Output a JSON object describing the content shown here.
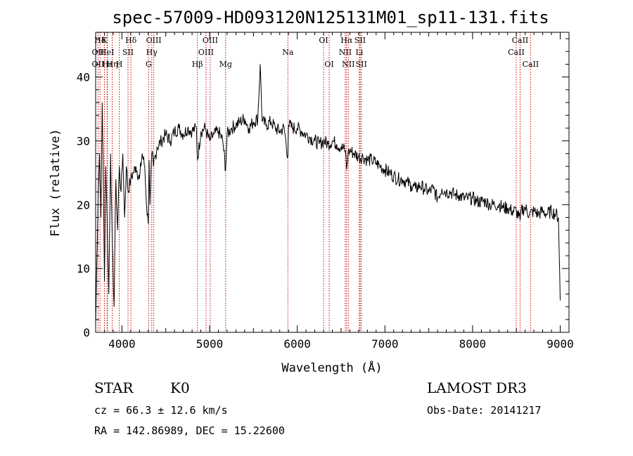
{
  "chart_data": {
    "type": "line",
    "title": "spec-57009-HD093120N125131M01_sp11-131.fits",
    "xlabel": "Wavelength (Å)",
    "ylabel": "Flux (relative)",
    "xlim": [
      3700,
      9100
    ],
    "ylim": [
      0,
      47
    ],
    "xticks": [
      4000,
      5000,
      6000,
      7000,
      8000,
      9000
    ],
    "yticks": [
      0,
      10,
      20,
      30,
      40
    ],
    "series": [
      {
        "name": "spectrum",
        "x": [
          3700,
          3715,
          3730,
          3745,
          3760,
          3775,
          3790,
          3800,
          3815,
          3830,
          3850,
          3870,
          3890,
          3910,
          3930,
          3950,
          3970,
          3990,
          4010,
          4030,
          4050,
          4070,
          4100,
          4130,
          4160,
          4200,
          4230,
          4260,
          4280,
          4300,
          4310,
          4320,
          4340,
          4360,
          4400,
          4450,
          4500,
          4550,
          4600,
          4650,
          4700,
          4750,
          4800,
          4850,
          4861,
          4900,
          4950,
          5000,
          5050,
          5100,
          5150,
          5183,
          5200,
          5250,
          5300,
          5350,
          5400,
          5450,
          5500,
          5550,
          5577,
          5600,
          5650,
          5700,
          5750,
          5800,
          5850,
          5893,
          5900,
          5950,
          6000,
          6050,
          6100,
          6150,
          6200,
          6250,
          6300,
          6350,
          6400,
          6450,
          6500,
          6550,
          6563,
          6580,
          6600,
          6650,
          6700,
          6750,
          6800,
          6850,
          6900,
          6950,
          7000,
          7050,
          7100,
          7150,
          7200,
          7250,
          7300,
          7350,
          7400,
          7450,
          7500,
          7550,
          7600,
          7650,
          7700,
          7750,
          7800,
          7850,
          7900,
          7950,
          8000,
          8050,
          8100,
          8150,
          8200,
          8250,
          8300,
          8350,
          8400,
          8450,
          8500,
          8542,
          8550,
          8600,
          8650,
          8700,
          8750,
          8800,
          8850,
          8900,
          8950,
          8980,
          9000
        ],
        "values": [
          1,
          12,
          22,
          28,
          18,
          36,
          22,
          8,
          26,
          18,
          6,
          28,
          14,
          4,
          24,
          16,
          26,
          22,
          28,
          18,
          26,
          22,
          24,
          25,
          26,
          24,
          28,
          26,
          20,
          17,
          27,
          20,
          28,
          26,
          29,
          30,
          31,
          30,
          31.5,
          32,
          31,
          32,
          31.5,
          32,
          27,
          31.5,
          32,
          30,
          31,
          31.5,
          30,
          25.5,
          31,
          32,
          32.5,
          33,
          33.5,
          32,
          33,
          33.5,
          42,
          33,
          32.5,
          33,
          32,
          31.5,
          32,
          27.5,
          32.5,
          32,
          32,
          31.5,
          31,
          30.5,
          30,
          29.5,
          30,
          29.5,
          30,
          29.5,
          29,
          28.5,
          25.5,
          28,
          28.5,
          28,
          27.5,
          27.5,
          27,
          27,
          26.5,
          26,
          25.5,
          25,
          24.5,
          24,
          24,
          23.5,
          23,
          22.5,
          23,
          22.5,
          22,
          22.5,
          21,
          22.5,
          22,
          22,
          21.5,
          21.5,
          21,
          21,
          21,
          20.5,
          20.5,
          20.5,
          20,
          20,
          20,
          19.5,
          19.5,
          19,
          19,
          17.5,
          19,
          19.5,
          18.5,
          19,
          18.5,
          19,
          18.5,
          19,
          18.5,
          18,
          5
        ]
      }
    ],
    "lines": [
      {
        "label": "Hδ",
        "x": 3750,
        "row": 0
      },
      {
        "label": "K",
        "x": 3800,
        "row": 0
      },
      {
        "label": "Hδ",
        "x": 4102,
        "row": 0
      },
      {
        "label": "OIII",
        "x": 4363,
        "row": 0
      },
      {
        "label": "OIII",
        "x": 5007,
        "row": 0
      },
      {
        "label": "OI",
        "x": 6300,
        "row": 0
      },
      {
        "label": "Hα",
        "x": 6563,
        "row": 0
      },
      {
        "label": "SII",
        "x": 6717,
        "row": 0
      },
      {
        "label": "CaII",
        "x": 8542,
        "row": 0
      },
      {
        "label": "OII",
        "x": 3727,
        "row": 1
      },
      {
        "label": "HeI",
        "x": 3830,
        "row": 1
      },
      {
        "label": "SII",
        "x": 4069,
        "row": 1
      },
      {
        "label": "Hγ",
        "x": 4340,
        "row": 1
      },
      {
        "label": "OIII",
        "x": 4959,
        "row": 1
      },
      {
        "label": "Na",
        "x": 5893,
        "row": 1
      },
      {
        "label": "NII",
        "x": 6548,
        "row": 1
      },
      {
        "label": "Li",
        "x": 6708,
        "row": 1
      },
      {
        "label": "CaII",
        "x": 8498,
        "row": 1
      },
      {
        "label": "OII",
        "x": 3727,
        "row": 2
      },
      {
        "label": "Hε",
        "x": 3835,
        "row": 2
      },
      {
        "label": "Hη",
        "x": 3889,
        "row": 2
      },
      {
        "label": "H",
        "x": 3969,
        "row": 2
      },
      {
        "label": "G",
        "x": 4305,
        "row": 2
      },
      {
        "label": "Hβ",
        "x": 4861,
        "row": 2
      },
      {
        "label": "Mg",
        "x": 5183,
        "row": 2
      },
      {
        "label": "OI",
        "x": 6364,
        "row": 2
      },
      {
        "label": "NII",
        "x": 6583,
        "row": 2
      },
      {
        "label": "SII",
        "x": 6731,
        "row": 2
      },
      {
        "label": "CaII",
        "x": 8662,
        "row": 2
      }
    ]
  },
  "info": {
    "object_class": "STAR",
    "subclass": "K0",
    "survey": "LAMOST DR3",
    "redshift": "cz = 66.3 ± 12.6 km/s",
    "obs_date": "Obs-Date: 20141217",
    "coords": "RA = 142.86989, DEC =  15.22600"
  },
  "colors": {
    "spectrum": "#000000",
    "line_markers": "#cc0000",
    "axes": "#000000"
  }
}
